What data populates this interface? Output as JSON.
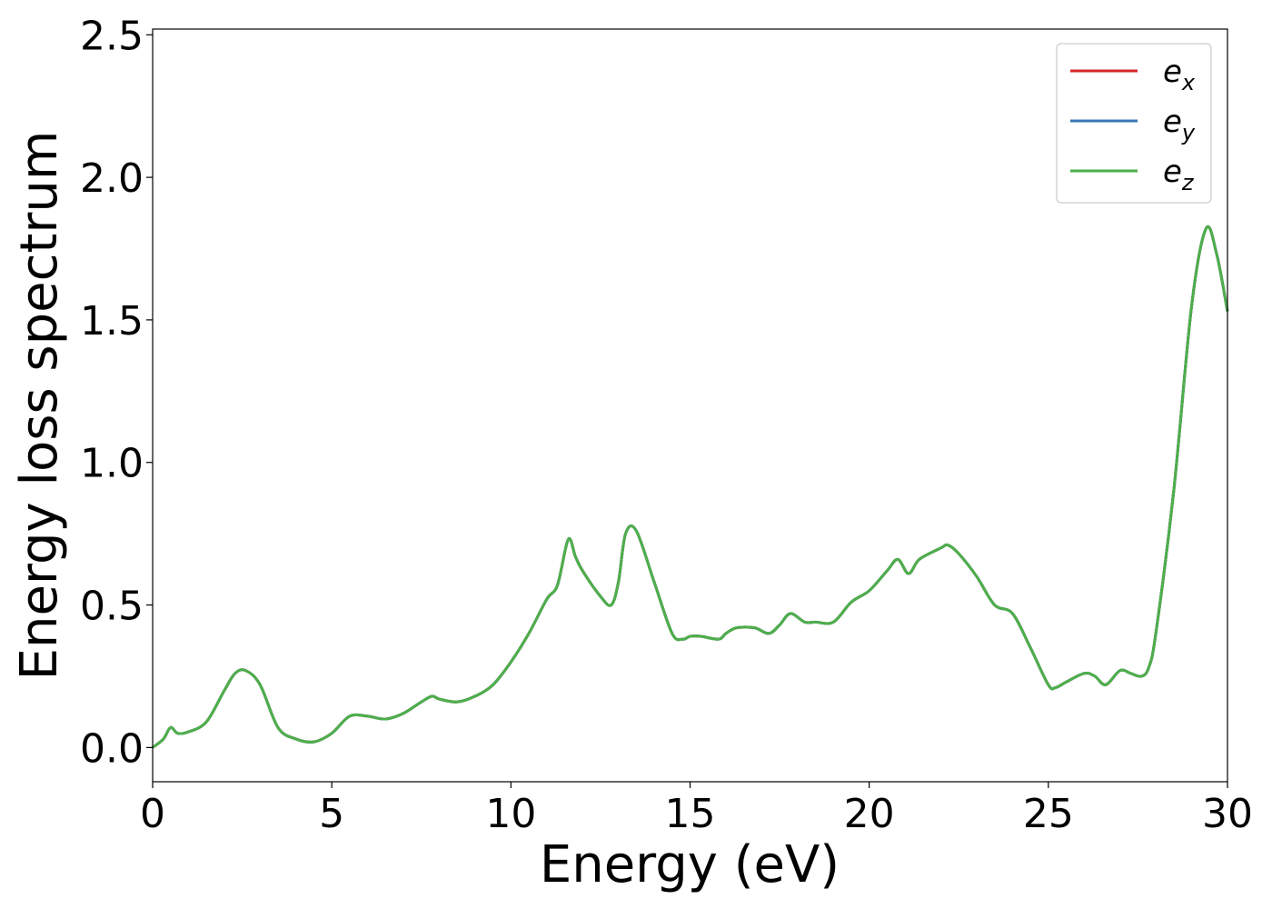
{
  "chart_data": {
    "type": "line",
    "title": "",
    "xlabel": "Energy (eV)",
    "ylabel": "Energy loss spectrum",
    "xlim": [
      0,
      30
    ],
    "ylim": [
      -0.12,
      2.52
    ],
    "xticks": [
      0,
      5,
      10,
      15,
      20,
      25,
      30
    ],
    "xtick_labels": [
      "0",
      "5",
      "10",
      "15",
      "20",
      "25",
      "30"
    ],
    "yticks": [
      0.0,
      0.5,
      1.0,
      1.5,
      2.0,
      2.5
    ],
    "ytick_labels": [
      "0.0",
      "0.5",
      "1.0",
      "1.5",
      "2.0",
      "2.5"
    ],
    "grid": false,
    "legend_position": "top-right",
    "series": [
      {
        "name": "e",
        "subscript": "x",
        "color": "#d62728"
      },
      {
        "name": "e",
        "subscript": "y",
        "color": "#3a76b8"
      },
      {
        "name": "e",
        "subscript": "z",
        "color": "#4daf4a"
      }
    ],
    "x": [
      0,
      0.3,
      0.5,
      0.7,
      1.0,
      1.5,
      2.0,
      2.3,
      2.6,
      3.0,
      3.5,
      4.0,
      4.5,
      5.0,
      5.5,
      6.0,
      6.5,
      7.0,
      7.5,
      7.8,
      8.0,
      8.5,
      9.0,
      9.5,
      10.0,
      10.5,
      11.0,
      11.3,
      11.6,
      11.8,
      12.0,
      12.5,
      12.8,
      13.0,
      13.2,
      13.5,
      14.0,
      14.5,
      14.8,
      15.0,
      15.3,
      15.8,
      16.0,
      16.3,
      16.8,
      17.2,
      17.5,
      17.8,
      18.2,
      18.5,
      19.0,
      19.5,
      20.0,
      20.5,
      20.8,
      21.1,
      21.4,
      22.0,
      22.2,
      22.5,
      23.0,
      23.5,
      24.0,
      24.5,
      25.0,
      25.2,
      25.5,
      26.0,
      26.3,
      26.6,
      27.0,
      27.3,
      27.6,
      27.8,
      28.0,
      28.5,
      29.0,
      29.4,
      29.7,
      30.0
    ],
    "values": [
      [
        0.0,
        0.03,
        0.07,
        0.05,
        0.055,
        0.09,
        0.2,
        0.26,
        0.27,
        0.22,
        0.07,
        0.03,
        0.02,
        0.05,
        0.11,
        0.11,
        0.1,
        0.12,
        0.16,
        0.18,
        0.17,
        0.16,
        0.18,
        0.22,
        0.3,
        0.4,
        0.52,
        0.57,
        0.73,
        0.67,
        0.62,
        0.53,
        0.5,
        0.58,
        0.75,
        0.76,
        0.58,
        0.4,
        0.38,
        0.39,
        0.39,
        0.38,
        0.4,
        0.42,
        0.42,
        0.4,
        0.43,
        0.47,
        0.44,
        0.44,
        0.44,
        0.51,
        0.55,
        0.62,
        0.66,
        0.61,
        0.66,
        0.7,
        0.71,
        0.68,
        0.6,
        0.5,
        0.47,
        0.35,
        0.22,
        0.21,
        0.23,
        0.26,
        0.25,
        0.22,
        0.27,
        0.26,
        0.25,
        0.28,
        0.4,
        0.9,
        1.55,
        1.82,
        1.73,
        1.53
      ],
      [
        0.0,
        0.03,
        0.07,
        0.05,
        0.055,
        0.09,
        0.2,
        0.26,
        0.27,
        0.22,
        0.07,
        0.03,
        0.02,
        0.05,
        0.11,
        0.11,
        0.1,
        0.12,
        0.16,
        0.18,
        0.17,
        0.16,
        0.18,
        0.22,
        0.3,
        0.4,
        0.52,
        0.57,
        0.73,
        0.67,
        0.62,
        0.53,
        0.5,
        0.58,
        0.75,
        0.76,
        0.58,
        0.4,
        0.38,
        0.39,
        0.39,
        0.38,
        0.4,
        0.42,
        0.42,
        0.4,
        0.43,
        0.47,
        0.44,
        0.44,
        0.44,
        0.51,
        0.55,
        0.62,
        0.66,
        0.61,
        0.66,
        0.7,
        0.71,
        0.68,
        0.6,
        0.5,
        0.47,
        0.35,
        0.22,
        0.21,
        0.23,
        0.26,
        0.25,
        0.22,
        0.27,
        0.26,
        0.25,
        0.28,
        0.4,
        0.9,
        1.55,
        1.82,
        1.73,
        1.53
      ],
      [
        0.0,
        0.03,
        0.07,
        0.05,
        0.055,
        0.09,
        0.2,
        0.26,
        0.27,
        0.22,
        0.07,
        0.03,
        0.02,
        0.05,
        0.11,
        0.11,
        0.1,
        0.12,
        0.16,
        0.18,
        0.17,
        0.16,
        0.18,
        0.22,
        0.3,
        0.4,
        0.52,
        0.57,
        0.73,
        0.67,
        0.62,
        0.53,
        0.5,
        0.58,
        0.75,
        0.76,
        0.58,
        0.4,
        0.38,
        0.39,
        0.39,
        0.38,
        0.4,
        0.42,
        0.42,
        0.4,
        0.43,
        0.47,
        0.44,
        0.44,
        0.44,
        0.51,
        0.55,
        0.62,
        0.66,
        0.61,
        0.66,
        0.7,
        0.71,
        0.68,
        0.6,
        0.5,
        0.47,
        0.35,
        0.22,
        0.21,
        0.23,
        0.26,
        0.25,
        0.22,
        0.27,
        0.26,
        0.25,
        0.28,
        0.4,
        0.9,
        1.55,
        1.82,
        1.73,
        1.53
      ]
    ]
  }
}
